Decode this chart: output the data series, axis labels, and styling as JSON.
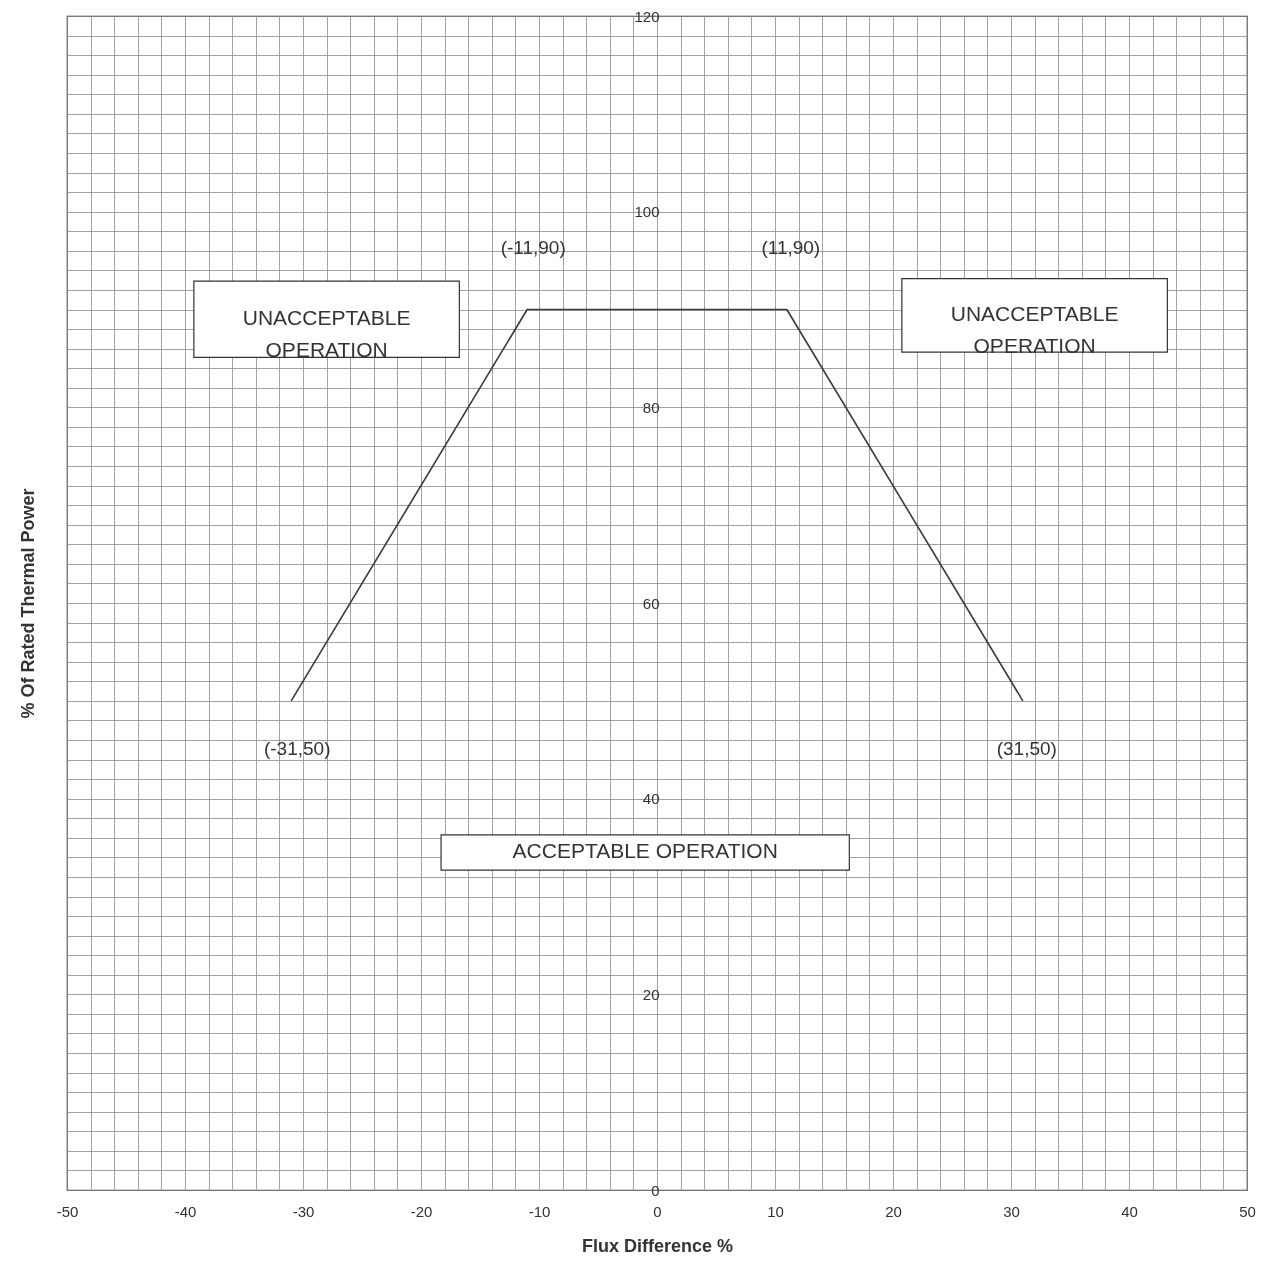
{
  "chart_data": {
    "type": "line",
    "xlabel": "Flux Difference %",
    "ylabel": "% Of Rated Thermal Power",
    "x": [
      -31,
      -11,
      11,
      31
    ],
    "series": [
      {
        "color": "#3a3a3a",
        "values": [
          50,
          90,
          90,
          50
        ]
      }
    ],
    "xlim": [
      -50,
      50
    ],
    "xticks": [
      -50,
      {
        "value": -48,
        "label": null
      },
      {
        "value": -46,
        "label": null
      },
      {
        "value": -44,
        "label": null
      },
      {
        "value": -42,
        "label": null
      },
      -40,
      {
        "value": -38,
        "label": null
      },
      {
        "value": -36,
        "label": null
      },
      {
        "value": -34,
        "label": null
      },
      {
        "value": -32,
        "label": null
      },
      -30,
      {
        "value": -28,
        "label": null
      },
      {
        "value": -26,
        "label": null
      },
      {
        "value": -24,
        "label": null
      },
      {
        "value": -22,
        "label": null
      },
      -20,
      {
        "value": -18,
        "label": null
      },
      {
        "value": -16,
        "label": null
      },
      {
        "value": -14,
        "label": null
      },
      {
        "value": -12,
        "label": null
      },
      -10,
      {
        "value": -8,
        "label": null
      },
      {
        "value": -6,
        "label": null
      },
      {
        "value": -4,
        "label": null
      },
      {
        "value": -2,
        "label": null
      },
      0,
      {
        "value": 2,
        "label": null
      },
      {
        "value": 4,
        "label": null
      },
      {
        "value": 6,
        "label": null
      },
      {
        "value": 8,
        "label": null
      },
      10,
      {
        "value": 12,
        "label": null
      },
      {
        "value": 14,
        "label": null
      },
      {
        "value": 16,
        "label": null
      },
      {
        "value": 18,
        "label": null
      },
      20,
      {
        "value": 22,
        "label": null
      },
      {
        "value": 24,
        "label": null
      },
      {
        "value": 26,
        "label": null
      },
      {
        "value": 28,
        "label": null
      },
      30,
      {
        "value": 32,
        "label": null
      },
      {
        "value": 34,
        "label": null
      },
      {
        "value": 36,
        "label": null
      },
      {
        "value": 38,
        "label": null
      },
      40,
      {
        "value": 42,
        "label": null
      },
      {
        "value": 44,
        "label": null
      },
      {
        "value": 46,
        "label": null
      },
      {
        "value": 48,
        "label": null
      },
      50
    ],
    "ylim": [
      0,
      120
    ],
    "yticks": [
      0,
      {
        "value": 2,
        "label": null
      },
      {
        "value": 4,
        "label": null
      },
      {
        "value": 6,
        "label": null
      },
      {
        "value": 8,
        "label": null
      },
      {
        "value": 10,
        "label": null
      },
      {
        "value": 12,
        "label": null
      },
      {
        "value": 14,
        "label": null
      },
      {
        "value": 16,
        "label": null
      },
      {
        "value": 18,
        "label": null
      },
      20,
      {
        "value": 22,
        "label": null
      },
      {
        "value": 24,
        "label": null
      },
      {
        "value": 26,
        "label": null
      },
      {
        "value": 28,
        "label": null
      },
      {
        "value": 30,
        "label": null
      },
      {
        "value": 32,
        "label": null
      },
      {
        "value": 34,
        "label": null
      },
      {
        "value": 36,
        "label": null
      },
      {
        "value": 38,
        "label": null
      },
      40,
      {
        "value": 42,
        "label": null
      },
      {
        "value": 44,
        "label": null
      },
      {
        "value": 46,
        "label": null
      },
      {
        "value": 48,
        "label": null
      },
      {
        "value": 50,
        "label": null
      },
      {
        "value": 52,
        "label": null
      },
      {
        "value": 54,
        "label": null
      },
      {
        "value": 56,
        "label": null
      },
      {
        "value": 58,
        "label": null
      },
      60,
      {
        "value": 62,
        "label": null
      },
      {
        "value": 64,
        "label": null
      },
      {
        "value": 66,
        "label": null
      },
      {
        "value": 68,
        "label": null
      },
      {
        "value": 70,
        "label": null
      },
      {
        "value": 72,
        "label": null
      },
      {
        "value": 74,
        "label": null
      },
      {
        "value": 76,
        "label": null
      },
      {
        "value": 78,
        "label": null
      },
      80,
      {
        "value": 82,
        "label": null
      },
      {
        "value": 84,
        "label": null
      },
      {
        "value": 86,
        "label": null
      },
      {
        "value": 88,
        "label": null
      },
      {
        "value": 90,
        "label": null
      },
      {
        "value": 92,
        "label": null
      },
      {
        "value": 94,
        "label": null
      },
      {
        "value": 96,
        "label": null
      },
      {
        "value": 98,
        "label": null
      },
      100,
      {
        "value": 102,
        "label": null
      },
      {
        "value": 104,
        "label": null
      },
      {
        "value": 106,
        "label": null
      },
      {
        "value": 108,
        "label": null
      },
      {
        "value": 110,
        "label": null
      },
      {
        "value": 112,
        "label": null
      },
      {
        "value": 114,
        "label": null
      },
      {
        "value": 116,
        "label": null
      },
      {
        "value": 118,
        "label": null
      },
      120
    ],
    "grid": true,
    "marker": "none",
    "line_style": "solid",
    "annotations": [
      {
        "text": "(-11,90)",
        "x": -11,
        "y": 90
      },
      {
        "text": "(11,90)",
        "x": 11,
        "y": 90
      },
      {
        "text": "(-31,50)",
        "x": -31,
        "y": 50
      },
      {
        "text": "(31,50)",
        "x": 31,
        "y": 50
      },
      "UNACCEPTABLE OPERATION",
      "UNACCEPTABLE OPERATION",
      "ACCEPTABLE OPERATION"
    ]
  }
}
